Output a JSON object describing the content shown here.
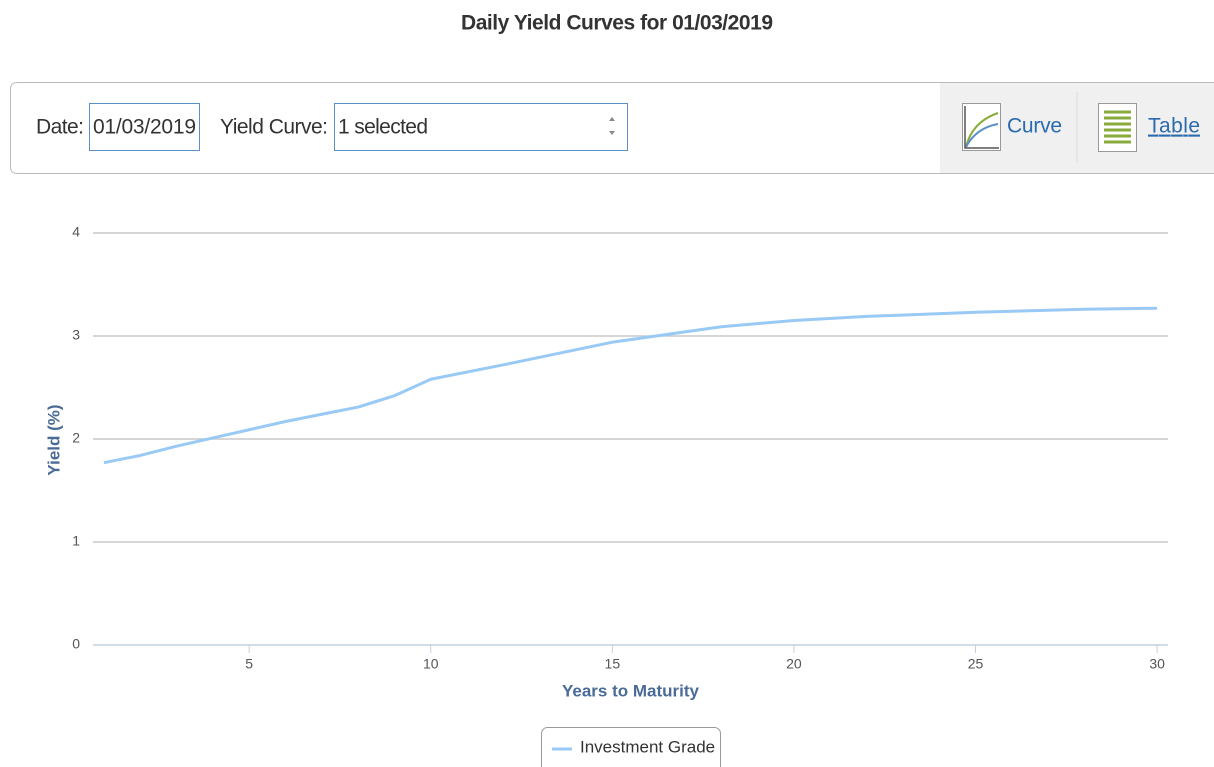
{
  "title": "Daily Yield Curves for 01/03/2019",
  "controls": {
    "date_label": "Date:",
    "date_value": "01/03/2019",
    "curve_label": "Yield Curve:",
    "curve_value": "1 selected"
  },
  "views": [
    "Curve",
    "Table"
  ],
  "chart_data": {
    "type": "line",
    "x": [
      1,
      2,
      3,
      4,
      5,
      6,
      7,
      8,
      9,
      10,
      12,
      15,
      17,
      18,
      20,
      22,
      25,
      28,
      30
    ],
    "series": [
      {
        "name": "Investment Grade",
        "color": "#99c9f5",
        "values": [
          1.77,
          1.84,
          1.93,
          2.01,
          2.09,
          2.17,
          2.24,
          2.31,
          2.42,
          2.58,
          2.72,
          2.94,
          3.04,
          3.09,
          3.15,
          3.19,
          3.23,
          3.26,
          3.27
        ]
      }
    ],
    "xlabel": "Years to Maturity",
    "ylabel": "Yield (%)",
    "xlim": [
      0.7,
      30.3
    ],
    "xticks": [
      5,
      10,
      15,
      20,
      25,
      30
    ],
    "ylim": [
      0,
      4
    ],
    "yticks": [
      0,
      1,
      2,
      3,
      4
    ],
    "grid": true
  }
}
